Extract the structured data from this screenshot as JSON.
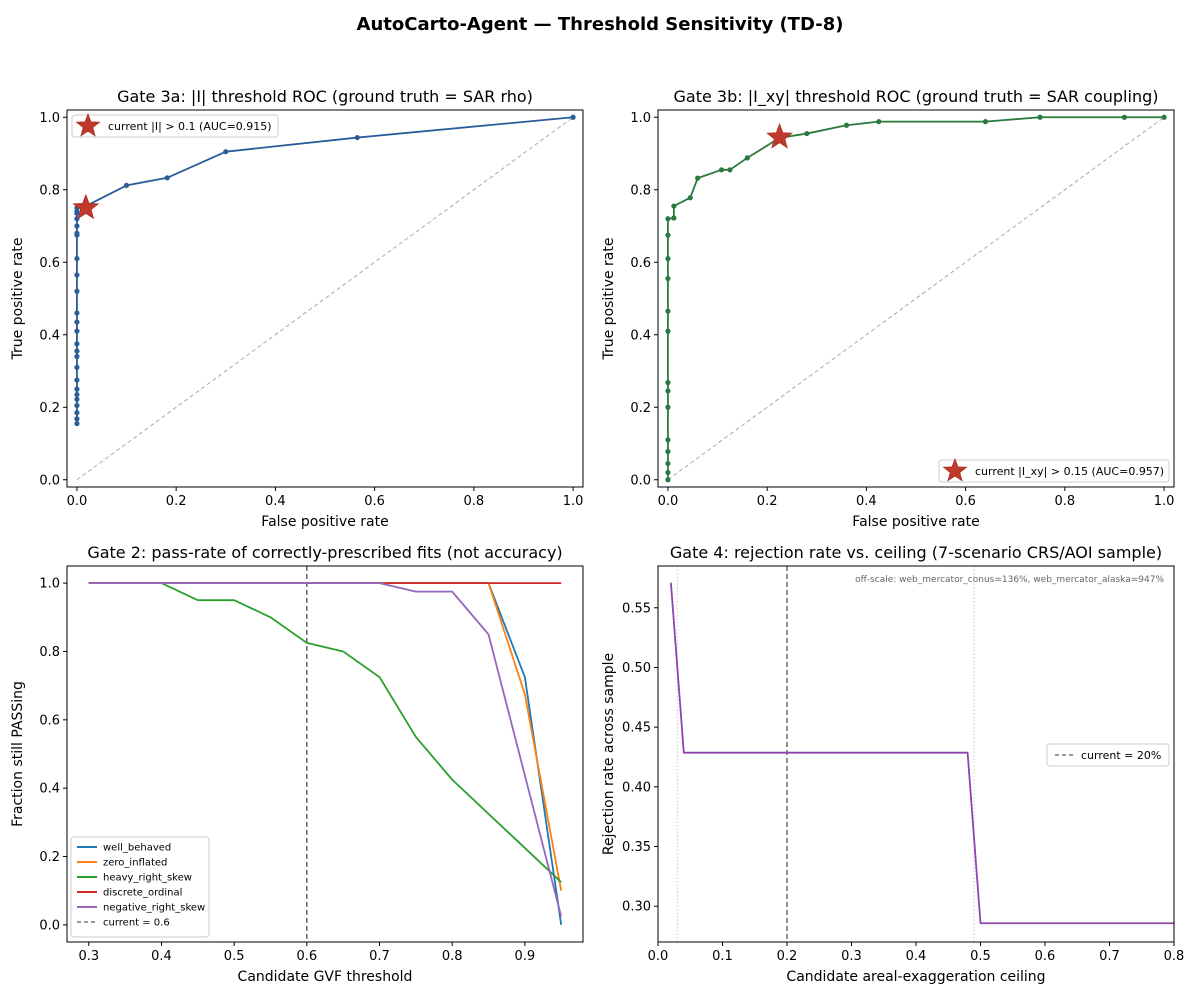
{
  "figure": {
    "title": "AutoCarto-Agent — Threshold Sensitivity (TD-8)"
  },
  "chart_data": [
    {
      "id": "gate3a",
      "type": "line",
      "title": "Gate 3a: |I| threshold ROC (ground truth = SAR rho)",
      "xlabel": "False positive rate",
      "ylabel": "True positive rate",
      "xlim": [
        -0.02,
        1.02
      ],
      "ylim": [
        -0.02,
        1.02
      ],
      "xticks": [
        0.0,
        0.2,
        0.4,
        0.6,
        0.8,
        1.0
      ],
      "yticks": [
        0.0,
        0.2,
        0.4,
        0.6,
        0.8,
        1.0
      ],
      "tick_labels_x": [
        "0.0",
        "0.2",
        "0.4",
        "0.6",
        "0.8",
        "1.0"
      ],
      "tick_labels_y": [
        "0.0",
        "0.2",
        "0.4",
        "0.6",
        "0.8",
        "1.0"
      ],
      "grid": false,
      "legend_position": "upper-left",
      "diagonal": true,
      "series": [
        {
          "color": "#2a5c9a",
          "markers": true,
          "x": [
            0.0,
            0.0,
            0.0,
            0.0,
            0.0,
            0.0,
            0.0,
            0.0,
            0.0,
            0.0,
            0.0,
            0.0,
            0.0,
            0.0,
            0.0,
            0.0,
            0.0,
            0.0,
            0.0,
            0.0,
            0.0,
            0.0,
            0.0,
            0.0,
            0.0,
            0.01,
            0.018,
            0.1,
            0.182,
            0.3,
            0.565,
            1.0
          ],
          "y": [
            0.155,
            0.168,
            0.185,
            0.205,
            0.222,
            0.235,
            0.25,
            0.275,
            0.31,
            0.34,
            0.355,
            0.375,
            0.41,
            0.435,
            0.46,
            0.52,
            0.565,
            0.61,
            0.675,
            0.68,
            0.7,
            0.72,
            0.735,
            0.74,
            0.75,
            0.753,
            0.755,
            0.812,
            0.833,
            0.905,
            0.944,
            1.0
          ]
        }
      ],
      "highlight": {
        "x": 0.018,
        "y": 0.75,
        "label": "current |I| > 0.1 (AUC=0.915)",
        "color": "#c0392b"
      }
    },
    {
      "id": "gate3b",
      "type": "line",
      "title": "Gate 3b: |I_xy| threshold ROC (ground truth = SAR coupling)",
      "xlabel": "False positive rate",
      "ylabel": "True positive rate",
      "xlim": [
        -0.02,
        1.02
      ],
      "ylim": [
        -0.02,
        1.02
      ],
      "xticks": [
        0.0,
        0.2,
        0.4,
        0.6,
        0.8,
        1.0
      ],
      "yticks": [
        0.0,
        0.2,
        0.4,
        0.6,
        0.8,
        1.0
      ],
      "tick_labels_x": [
        "0.0",
        "0.2",
        "0.4",
        "0.6",
        "0.8",
        "1.0"
      ],
      "tick_labels_y": [
        "0.0",
        "0.2",
        "0.4",
        "0.6",
        "0.8",
        "1.0"
      ],
      "grid": false,
      "legend_position": "lower-right",
      "diagonal": true,
      "series": [
        {
          "color": "#2a7a3e",
          "markers": true,
          "x": [
            0.0,
            0.0,
            0.0,
            0.0,
            0.0,
            0.0,
            0.0,
            0.0,
            0.0,
            0.0,
            0.0,
            0.0,
            0.0,
            0.0,
            0.012,
            0.012,
            0.045,
            0.06,
            0.108,
            0.125,
            0.16,
            0.225,
            0.28,
            0.36,
            0.425,
            0.64,
            0.75,
            0.92,
            1.0
          ],
          "y": [
            0.0,
            0.02,
            0.045,
            0.078,
            0.11,
            0.2,
            0.245,
            0.268,
            0.41,
            0.465,
            0.555,
            0.61,
            0.675,
            0.72,
            0.722,
            0.755,
            0.778,
            0.832,
            0.855,
            0.855,
            0.888,
            0.943,
            0.955,
            0.978,
            0.988,
            0.988,
            1.0,
            1.0,
            1.0
          ]
        }
      ],
      "highlight": {
        "x": 0.225,
        "y": 0.945,
        "label": "current |I_xy| > 0.15 (AUC=0.957)",
        "color": "#c0392b"
      }
    },
    {
      "id": "gate2",
      "type": "line",
      "title": "Gate 2: pass-rate of correctly-prescribed fits (not accuracy)",
      "xlabel": "Candidate GVF threshold",
      "ylabel": "Fraction still PASSing",
      "xlim": [
        0.27,
        0.98
      ],
      "ylim": [
        -0.05,
        1.05
      ],
      "xticks": [
        0.3,
        0.4,
        0.5,
        0.6,
        0.7,
        0.8,
        0.9
      ],
      "yticks": [
        0.0,
        0.2,
        0.4,
        0.6,
        0.8,
        1.0
      ],
      "tick_labels_x": [
        "0.3",
        "0.4",
        "0.5",
        "0.6",
        "0.7",
        "0.8",
        "0.9"
      ],
      "tick_labels_y": [
        "0.0",
        "0.2",
        "0.4",
        "0.6",
        "0.8",
        "1.0"
      ],
      "grid": false,
      "legend_position": "lower-left",
      "vline": {
        "x": 0.6,
        "label": "current = 0.6"
      },
      "series": [
        {
          "name": "well_behaved",
          "color": "#1f77b4",
          "x": [
            0.3,
            0.4,
            0.5,
            0.6,
            0.7,
            0.8,
            0.85,
            0.9,
            0.95
          ],
          "y": [
            1.0,
            1.0,
            1.0,
            1.0,
            1.0,
            1.0,
            1.0,
            0.725,
            0.0
          ]
        },
        {
          "name": "zero_inflated",
          "color": "#ff7f0e",
          "x": [
            0.3,
            0.4,
            0.5,
            0.6,
            0.7,
            0.8,
            0.85,
            0.9,
            0.95
          ],
          "y": [
            1.0,
            1.0,
            1.0,
            1.0,
            1.0,
            1.0,
            1.0,
            0.675,
            0.1
          ]
        },
        {
          "name": "heavy_right_skew",
          "color": "#2ca02c",
          "x": [
            0.3,
            0.4,
            0.45,
            0.5,
            0.55,
            0.6,
            0.65,
            0.7,
            0.75,
            0.8,
            0.95
          ],
          "y": [
            1.0,
            1.0,
            0.95,
            0.95,
            0.9,
            0.825,
            0.8,
            0.725,
            0.55,
            0.425,
            0.125
          ]
        },
        {
          "name": "discrete_ordinal",
          "color": "#d62728",
          "x": [
            0.3,
            0.4,
            0.5,
            0.6,
            0.7,
            0.8,
            0.9,
            0.95
          ],
          "y": [
            1.0,
            1.0,
            1.0,
            1.0,
            1.0,
            1.0,
            1.0,
            1.0
          ]
        },
        {
          "name": "negative_right_skew",
          "color": "#9467bd",
          "x": [
            0.3,
            0.4,
            0.5,
            0.6,
            0.7,
            0.75,
            0.8,
            0.85,
            0.95
          ],
          "y": [
            1.0,
            1.0,
            1.0,
            1.0,
            1.0,
            0.975,
            0.975,
            0.85,
            0.025
          ]
        }
      ]
    },
    {
      "id": "gate4",
      "type": "line",
      "title": "Gate 4: rejection rate vs. ceiling (7-scenario CRS/AOI sample)",
      "xlabel": "Candidate areal-exaggeration ceiling",
      "ylabel": "Rejection rate across sample",
      "xlim": [
        0.0,
        0.8
      ],
      "ylim": [
        0.27,
        0.585
      ],
      "xticks": [
        0.0,
        0.1,
        0.2,
        0.3,
        0.4,
        0.5,
        0.6,
        0.7,
        0.8
      ],
      "yticks": [
        0.3,
        0.35,
        0.4,
        0.45,
        0.5,
        0.55
      ],
      "tick_labels_x": [
        "0.0",
        "0.1",
        "0.2",
        "0.3",
        "0.4",
        "0.5",
        "0.6",
        "0.7",
        "0.8"
      ],
      "tick_labels_y": [
        "0.30",
        "0.35",
        "0.40",
        "0.45",
        "0.50",
        "0.55"
      ],
      "grid": false,
      "legend_position": "center-right",
      "vline": {
        "x": 0.2,
        "label": "current = 20%"
      },
      "dotted_vlines": [
        0.03,
        0.49
      ],
      "annotation": "off-scale: web_mercator_conus=136%, web_mercator_alaska=947%",
      "series": [
        {
          "color": "#8e44ad",
          "x": [
            0.02,
            0.04,
            0.48,
            0.5,
            0.8
          ],
          "y": [
            0.571,
            0.4286,
            0.4286,
            0.2857,
            0.2857
          ]
        }
      ]
    }
  ]
}
